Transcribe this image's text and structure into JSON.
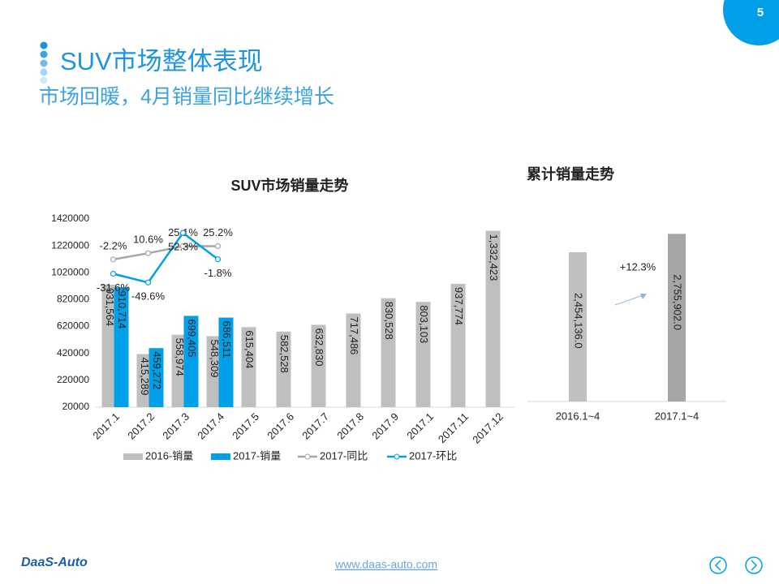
{
  "slide": {
    "page_number": "5",
    "title": "SUV市场整体表现",
    "subtitle": "市场回暖，4月销量同比继续增长",
    "logo": "DaaS-Auto",
    "url": "www.daas-auto.com"
  },
  "chart_data": [
    {
      "type": "bar",
      "title": "SUV市场销量走势",
      "categories": [
        "2017.1",
        "2017.2",
        "2017.3",
        "2017.4",
        "2017.5",
        "2017.6",
        "2017.7",
        "2017.8",
        "2017.9",
        "2017.1",
        "2017.11",
        "2017.12"
      ],
      "ylim": [
        20000,
        1420000
      ],
      "yticks": [
        20000,
        220000,
        420000,
        620000,
        820000,
        1020000,
        1220000,
        1420000
      ],
      "y2lim": [
        -306,
        81
      ],
      "series": [
        {
          "name": "2016-销量",
          "type": "bar",
          "color": "#bfbfbf",
          "values": [
            931564,
            415289,
            558974,
            548309,
            615404,
            582528,
            632830,
            717486,
            830528,
            803103,
            937774,
            1332423
          ],
          "value_labels": [
            "931,564",
            "415,289",
            "558,974",
            "548,309",
            "615,404",
            "582,528",
            "632,830",
            "717,486",
            "830,528",
            "803,103",
            "937,774",
            "1,332,423"
          ]
        },
        {
          "name": "2017-销量",
          "type": "bar",
          "color": "#00a0e9",
          "values": [
            910714,
            459272,
            699405,
            686511,
            null,
            null,
            null,
            null,
            null,
            null,
            null,
            null
          ],
          "value_labels": [
            "910,714",
            "459,272",
            "699,405",
            "686,511",
            null,
            null,
            null,
            null,
            null,
            null,
            null,
            null
          ]
        },
        {
          "name": "2017-同比",
          "type": "line",
          "axis": "y2",
          "color": "#a6a6a6",
          "values": [
            -2.2,
            10.6,
            25.1,
            25.2,
            null,
            null,
            null,
            null,
            null,
            null,
            null,
            null
          ],
          "value_labels": [
            "-2.2%",
            "10.6%",
            "25.1%",
            "25.2%",
            null,
            null,
            null,
            null,
            null,
            null,
            null,
            null
          ]
        },
        {
          "name": "2017-环比",
          "type": "line",
          "axis": "y2",
          "color": "#00a0e9",
          "values": [
            -31.6,
            -49.6,
            52.3,
            -1.8,
            null,
            null,
            null,
            null,
            null,
            null,
            null,
            null
          ],
          "value_labels": [
            "-31.6%",
            "-49.6%",
            "52.3%",
            "-1.8%",
            null,
            null,
            null,
            null,
            null,
            null,
            null,
            null
          ]
        }
      ]
    },
    {
      "type": "bar",
      "title": "累计销量走势",
      "categories": [
        "2016.1~4",
        "2017.1~4"
      ],
      "values": [
        2454136.0,
        2755902.0
      ],
      "value_labels": [
        "2,454,136.0",
        "2,755,902.0"
      ],
      "colors": [
        "#c0c0c0",
        "#a6a6a6"
      ],
      "ylim": [
        0,
        3000000
      ],
      "annotation": "+12.3%"
    }
  ]
}
